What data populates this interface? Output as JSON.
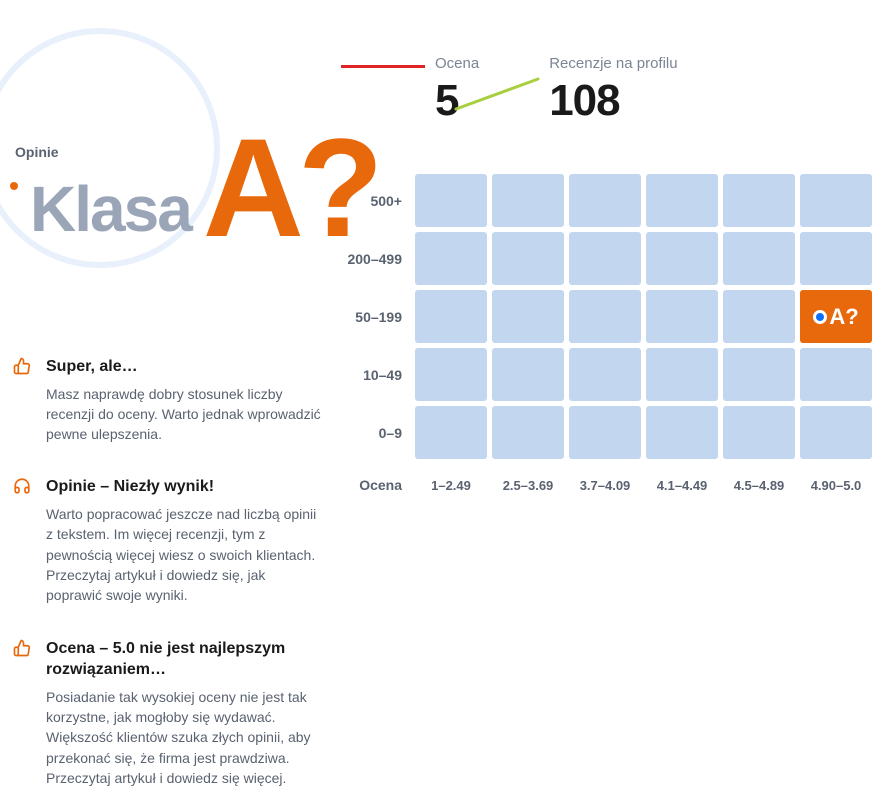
{
  "header": {
    "klasa_label": "Klasa",
    "grade": "A?",
    "opinie_label": "Opinie"
  },
  "stats": {
    "rating_label": "Ocena",
    "rating_value": "5",
    "reviews_label": "Recenzje na profilu",
    "reviews_value": "108",
    "redline_color": "#e02424",
    "greenline_color": "#a8cf3f"
  },
  "tips": [
    {
      "icon": "thumbs-up",
      "icon_color": "#e8680c",
      "title": "Super, ale…",
      "text": "Masz naprawdę dobry stosunek liczby recenzji do oceny. Warto jednak wprowadzić pewne ulepszenia."
    },
    {
      "icon": "headphones",
      "icon_color": "#e8680c",
      "title": "Opinie – Niezły wynik!",
      "text": "Warto popracować jeszcze nad liczbą opinii z tekstem. Im więcej recenzji, tym z pewnością więcej wiesz o swoich klientach. Przeczytaj artykuł i dowiedz się, jak poprawić swoje wyniki."
    },
    {
      "icon": "thumbs-up",
      "icon_color": "#e8680c",
      "title": "Ocena – 5.0 nie jest najlepszym rozwiązaniem…",
      "text": "Posiadanie tak wysokiej oceny nie jest tak korzystne, jak mogłoby się wydawać. Większość klientów szuka złych opinii, aby przekonać się, że firma jest prawdziwa. Przeczytaj artykuł i dowiedz się więcej."
    }
  ],
  "matrix": {
    "y_labels": [
      "500+",
      "200–499",
      "50–199",
      "10–49",
      "0–9"
    ],
    "x_labels": [
      "1–2.49",
      "2.5–3.69",
      "3.7–4.09",
      "4.1–4.49",
      "4.5–4.89",
      "4.90–5.0"
    ],
    "x_axis_title": "Ocena",
    "cell_color": "#c2d6f0",
    "active_cell_color": "#e8680c",
    "active_row": 2,
    "active_col": 5,
    "active_label": "A?",
    "dot_color": "#0d6efd"
  },
  "colors": {
    "accent": "#e8680c",
    "muted": "#9aa6b8",
    "text": "#1a1a1a",
    "subtext": "#5a6270",
    "circle": "#e8f0fb"
  }
}
